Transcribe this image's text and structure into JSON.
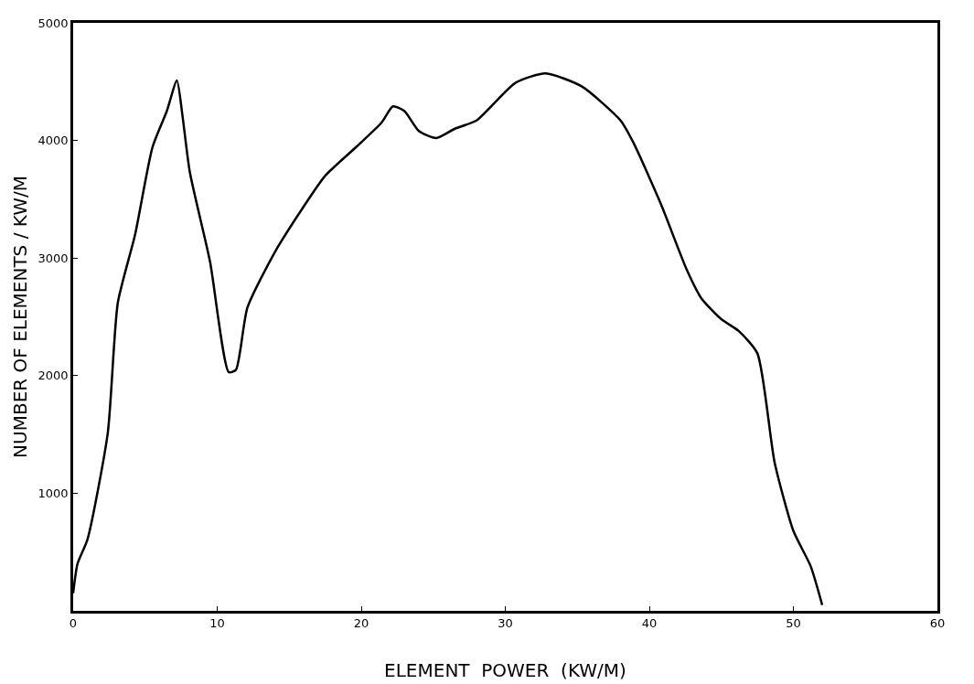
{
  "chart_data": {
    "type": "line",
    "xlabel": "ELEMENT  POWER  (KW/M)",
    "ylabel": "NUMBER OF ELEMENTS / KW/M",
    "xlim": [
      0,
      60
    ],
    "xticks": [
      0,
      10,
      20,
      30,
      40,
      50,
      60
    ],
    "ylim": [
      0,
      5000
    ],
    "yticks": [
      1000,
      2000,
      3000,
      4000,
      5000
    ],
    "grid": false,
    "marker": "none",
    "line_style": "solid",
    "series": [
      {
        "color": "#000000",
        "x": [
          0,
          0.3,
          1.0,
          2.4,
          3.1,
          4.3,
          5.5,
          6.5,
          7.2,
          7.6,
          8.1,
          9.5,
          10.8,
          11.3,
          12.1,
          14.0,
          15.8,
          17.5,
          19.7,
          21.4,
          22.2,
          23.0,
          24.0,
          25.2,
          26.5,
          28.0,
          30.7,
          32.8,
          35.3,
          38.0,
          38.9,
          40.8,
          42.6,
          43.6,
          45.0,
          46.2,
          47.5,
          48.7,
          50.0,
          51.2,
          52.0
        ],
        "values": [
          150,
          400,
          610,
          1510,
          2620,
          3200,
          3940,
          4250,
          4510,
          4200,
          3730,
          2970,
          2030,
          2050,
          2580,
          3050,
          3400,
          3700,
          3950,
          4150,
          4290,
          4250,
          4080,
          4020,
          4100,
          4170,
          4490,
          4570,
          4460,
          4170,
          3980,
          3460,
          2900,
          2660,
          2480,
          2380,
          2190,
          1260,
          680,
          380,
          50
        ]
      }
    ]
  }
}
